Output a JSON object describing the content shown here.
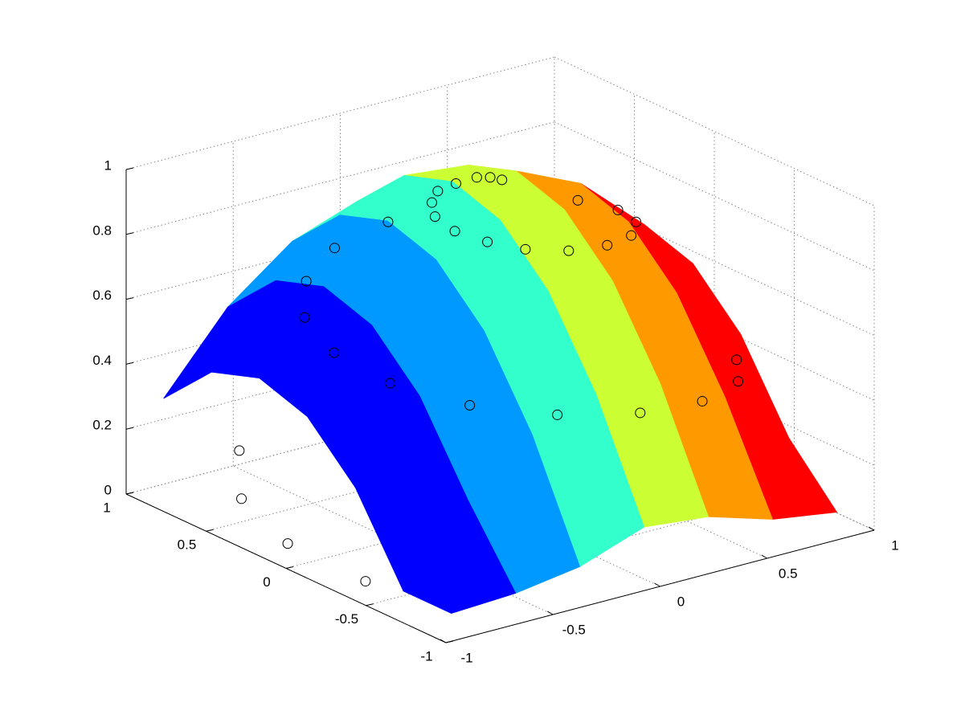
{
  "chart_data": {
    "type": "surface",
    "xlim": [
      -1,
      1
    ],
    "ylim": [
      -1,
      1
    ],
    "zlim": [
      0,
      1
    ],
    "xticks": [
      -1,
      -0.5,
      0,
      0.5,
      1
    ],
    "yticks": [
      -1,
      -0.5,
      0,
      0.5,
      1
    ],
    "zticks": [
      0,
      0.2,
      0.4,
      0.6,
      0.8,
      1
    ],
    "grid": true,
    "colormap": "jet",
    "surface": {
      "x": [
        -0.9,
        -0.6,
        -0.3,
        0,
        0.3,
        0.6,
        0.9
      ],
      "y": [
        -0.9,
        -0.6,
        -0.3,
        0,
        0.3,
        0.6,
        0.9
      ],
      "z": [
        [
          0.05,
          0.06,
          0.09,
          0.16,
          0.14,
          0.08,
          0.05
        ],
        [
          0.05,
          0.28,
          0.43,
          0.5,
          0.48,
          0.39,
          0.21
        ],
        [
          0.3,
          0.53,
          0.68,
          0.75,
          0.73,
          0.64,
          0.46
        ],
        [
          0.45,
          0.68,
          0.83,
          0.9,
          0.88,
          0.79,
          0.61
        ],
        [
          0.5,
          0.73,
          0.88,
          0.95,
          0.93,
          0.84,
          0.66
        ],
        [
          0.45,
          0.68,
          0.83,
          0.9,
          0.88,
          0.79,
          0.61
        ],
        [
          0.3,
          0.53,
          0.68,
          0.75,
          0.73,
          0.64,
          0.46
        ]
      ]
    },
    "points": {
      "color": "#000000",
      "x": [
        -0.8,
        -0.79,
        -0.94,
        -0.95,
        -0.48,
        -0.45,
        -0.41,
        -0.23,
        -0.03,
        0.17,
        0.43,
        0.69,
        0.82,
        0.85,
        0.5,
        0.47,
        0.32,
        0.2,
        0.03,
        -0.04,
        -0.11,
        0.1,
        0.14,
        0.04,
        0,
        -0.05,
        -0.18,
        -0.34,
        0.4,
        0.52,
        0.56,
        0.18
      ],
      "y": [
        0.56,
        0.56,
        0.07,
        -0.43,
        0.58,
        0.61,
        0.49,
        0.38,
        0.15,
        -0.13,
        -0.3,
        -0.34,
        -0.39,
        -0.34,
        -0.15,
        -0.04,
        0,
        0.11,
        0.12,
        0.23,
        0.26,
        0.28,
        0.25,
        0.33,
        0.39,
        0.36,
        0.46,
        0.58,
        0.05,
        -0.04,
        -0.1,
        0.23
      ],
      "z": [
        0.2,
        0.05,
        0.05,
        0.05,
        0.55,
        0.65,
        0.45,
        0.35,
        0.3,
        0.3,
        0.3,
        0.3,
        0.35,
        0.4,
        0.8,
        0.75,
        0.75,
        0.75,
        0.8,
        0.82,
        0.87,
        0.95,
        0.95,
        0.93,
        0.9,
        0.88,
        0.82,
        0.74,
        0.88,
        0.85,
        0.82,
        0.94
      ]
    }
  }
}
